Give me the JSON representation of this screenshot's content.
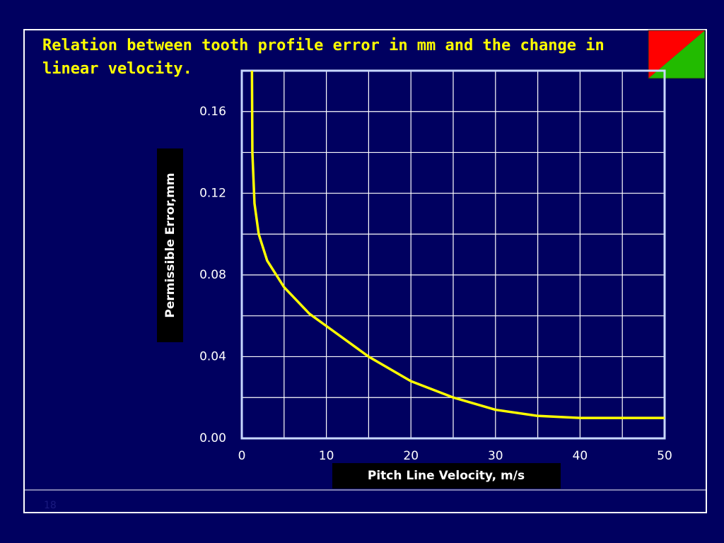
{
  "chart_data": {
    "type": "line",
    "title": "Relation between tooth profile error in mm and the change in linear velocity.",
    "x_label": "Pitch Line Velocity, m/s",
    "y_label": "Permissible Error,mm",
    "x": [
      1.2,
      1.25,
      1.5,
      2,
      3,
      5,
      8,
      10,
      15,
      20,
      25,
      30,
      35,
      40,
      45,
      50
    ],
    "series": [
      {
        "color": "#ffff00",
        "values": [
          0.18,
          0.14,
          0.115,
          0.1,
          0.087,
          0.074,
          0.061,
          0.055,
          0.04,
          0.028,
          0.02,
          0.014,
          0.011,
          0.01,
          0.01,
          0.01
        ]
      }
    ],
    "xlim": [
      0,
      50
    ],
    "ylim": [
      0,
      0.18
    ],
    "xticks": [
      0,
      10,
      20,
      30,
      40,
      50
    ],
    "yticks": [
      {
        "value": 0,
        "label": "0.00"
      },
      0.04,
      0.08,
      0.12,
      0.16
    ],
    "xminor": [
      5,
      15,
      25,
      35,
      45
    ],
    "yminor": [
      0.02,
      0.06,
      0.1,
      0.14,
      0.18
    ],
    "grid": true
  },
  "slide_number": "18"
}
